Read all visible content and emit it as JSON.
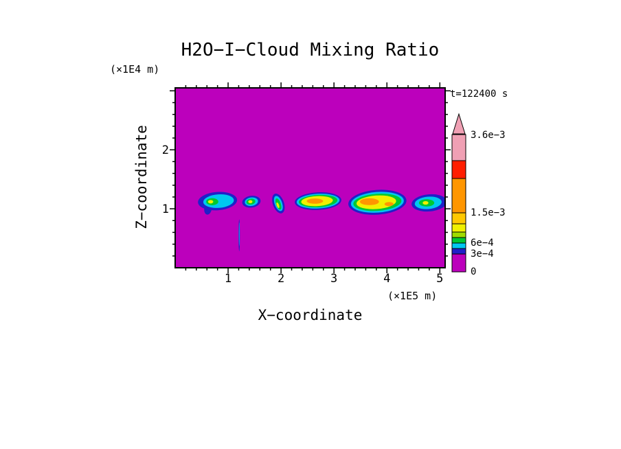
{
  "chart_data": {
    "type": "heatmap",
    "title": "H2O−I−Cloud Mixing Ratio",
    "time_label": "t=122400 s",
    "xlabel": "X−coordinate",
    "ylabel": "Z−coordinate",
    "x_unit": "(×1E5 m)",
    "y_unit": "(×1E4 m)",
    "xlim": [
      0,
      5.1
    ],
    "zlim": [
      0,
      3.05
    ],
    "x_major_ticks": [
      1,
      2,
      3,
      4,
      5
    ],
    "z_major_ticks": [
      1,
      2
    ],
    "minor_tick_step": 0.2,
    "background_value": 0,
    "colors": {
      "background": "#BC00BC",
      "navy": "#2020C8",
      "cyan": "#00C8F0",
      "green": "#00C832",
      "ygreen": "#A0DC00",
      "yellow": "#F0F000",
      "lorange": "#FFC800",
      "orange": "#FF9600",
      "red": "#FF1E00",
      "pink": "#F0A0B4"
    },
    "colorbar": {
      "top_label": "3.6e−3",
      "segments": [
        {
          "color": "background",
          "height": 26,
          "label": "0"
        },
        {
          "color": "navy",
          "height": 8,
          "label": "3e−4"
        },
        {
          "color": "cyan",
          "height": 8
        },
        {
          "color": "green",
          "height": 8,
          "label": "6e−4"
        },
        {
          "color": "ygreen",
          "height": 8
        },
        {
          "color": "yellow",
          "height": 12
        },
        {
          "color": "lorange",
          "height": 16
        },
        {
          "color": "orange",
          "height": 50,
          "label": "1.5e−3"
        },
        {
          "color": "red",
          "height": 26
        },
        {
          "color": "pink",
          "height": 38
        }
      ]
    },
    "clouds": [
      {
        "name": "cloud-1",
        "layers": [
          {
            "color": "navy",
            "cx": 0.8,
            "cz": 1.13,
            "rx": 0.37,
            "rz": 0.155,
            "rot": -4
          },
          {
            "color": "navy",
            "cx": 0.62,
            "cz": 1.0,
            "rx": 0.07,
            "rz": 0.1,
            "rot": 10
          },
          {
            "color": "cyan",
            "cx": 0.82,
            "cz": 1.13,
            "rx": 0.29,
            "rz": 0.115,
            "rot": -4
          },
          {
            "color": "green",
            "cx": 0.7,
            "cz": 1.12,
            "rx": 0.115,
            "rz": 0.06,
            "rot": 0
          },
          {
            "color": "yellow",
            "cx": 0.67,
            "cz": 1.12,
            "rx": 0.05,
            "rz": 0.03,
            "rot": 0
          }
        ]
      },
      {
        "name": "cloud-2",
        "layers": [
          {
            "color": "navy",
            "cx": 1.44,
            "cz": 1.12,
            "rx": 0.175,
            "rz": 0.1,
            "rot": -8
          },
          {
            "color": "cyan",
            "cx": 1.44,
            "cz": 1.12,
            "rx": 0.125,
            "rz": 0.072,
            "rot": -8
          },
          {
            "color": "green",
            "cx": 1.43,
            "cz": 1.12,
            "rx": 0.085,
            "rz": 0.05,
            "rot": -8
          },
          {
            "color": "yellow",
            "cx": 1.42,
            "cz": 1.12,
            "rx": 0.04,
            "rz": 0.026,
            "rot": 0
          }
        ]
      },
      {
        "name": "cloud-3",
        "layers": [
          {
            "color": "navy",
            "cx": 1.95,
            "cz": 1.09,
            "rx": 0.105,
            "rz": 0.175,
            "rot": -20
          },
          {
            "color": "cyan",
            "cx": 1.95,
            "cz": 1.09,
            "rx": 0.07,
            "rz": 0.135,
            "rot": -20
          },
          {
            "color": "green",
            "cx": 1.95,
            "cz": 1.08,
            "rx": 0.045,
            "rz": 0.1,
            "rot": -20
          },
          {
            "color": "yellow",
            "cx": 1.94,
            "cz": 1.06,
            "rx": 0.022,
            "rz": 0.05,
            "rot": -20
          }
        ]
      },
      {
        "name": "cloud-4",
        "layers": [
          {
            "color": "navy",
            "cx": 2.7,
            "cz": 1.13,
            "rx": 0.44,
            "rz": 0.15,
            "rot": -3
          },
          {
            "color": "cyan",
            "cx": 2.7,
            "cz": 1.13,
            "rx": 0.405,
            "rz": 0.125,
            "rot": -3
          },
          {
            "color": "green",
            "cx": 2.7,
            "cz": 1.13,
            "rx": 0.365,
            "rz": 0.105,
            "rot": -3
          },
          {
            "color": "yellow",
            "cx": 2.68,
            "cz": 1.13,
            "rx": 0.3,
            "rz": 0.085,
            "rot": -3
          },
          {
            "color": "orange",
            "cx": 2.64,
            "cz": 1.13,
            "rx": 0.155,
            "rz": 0.045,
            "rot": 0
          }
        ]
      },
      {
        "name": "cloud-5",
        "layers": [
          {
            "color": "navy",
            "cx": 3.82,
            "cz": 1.11,
            "rx": 0.55,
            "rz": 0.21,
            "rot": -4
          },
          {
            "color": "cyan",
            "cx": 3.82,
            "cz": 1.11,
            "rx": 0.5,
            "rz": 0.175,
            "rot": -4
          },
          {
            "color": "green",
            "cx": 3.82,
            "cz": 1.11,
            "rx": 0.455,
            "rz": 0.145,
            "rot": -4
          },
          {
            "color": "yellow",
            "cx": 3.8,
            "cz": 1.11,
            "rx": 0.375,
            "rz": 0.115,
            "rot": -4
          },
          {
            "color": "orange",
            "cx": 3.67,
            "cz": 1.12,
            "rx": 0.18,
            "rz": 0.058,
            "rot": 0
          },
          {
            "color": "orange",
            "cx": 4.04,
            "cz": 1.08,
            "rx": 0.085,
            "rz": 0.035,
            "rot": 0
          }
        ]
      },
      {
        "name": "cloud-6",
        "layers": [
          {
            "color": "navy",
            "cx": 4.8,
            "cz": 1.1,
            "rx": 0.335,
            "rz": 0.145,
            "rot": -5
          },
          {
            "color": "cyan",
            "cx": 4.78,
            "cz": 1.1,
            "rx": 0.255,
            "rz": 0.105,
            "rot": -5
          },
          {
            "color": "green",
            "cx": 4.75,
            "cz": 1.1,
            "rx": 0.145,
            "rz": 0.062,
            "rot": 0
          },
          {
            "color": "yellow",
            "cx": 4.73,
            "cz": 1.1,
            "rx": 0.055,
            "rz": 0.03,
            "rot": 0
          }
        ]
      },
      {
        "name": "fall-streak",
        "layers": [
          {
            "color": "navy",
            "cx": 1.21,
            "cz": 0.55,
            "rx": 0.013,
            "rz": 0.27,
            "rot": 0
          },
          {
            "color": "cyan",
            "cx": 1.21,
            "cz": 0.57,
            "rx": 0.006,
            "rz": 0.2,
            "rot": 0
          }
        ]
      }
    ]
  }
}
